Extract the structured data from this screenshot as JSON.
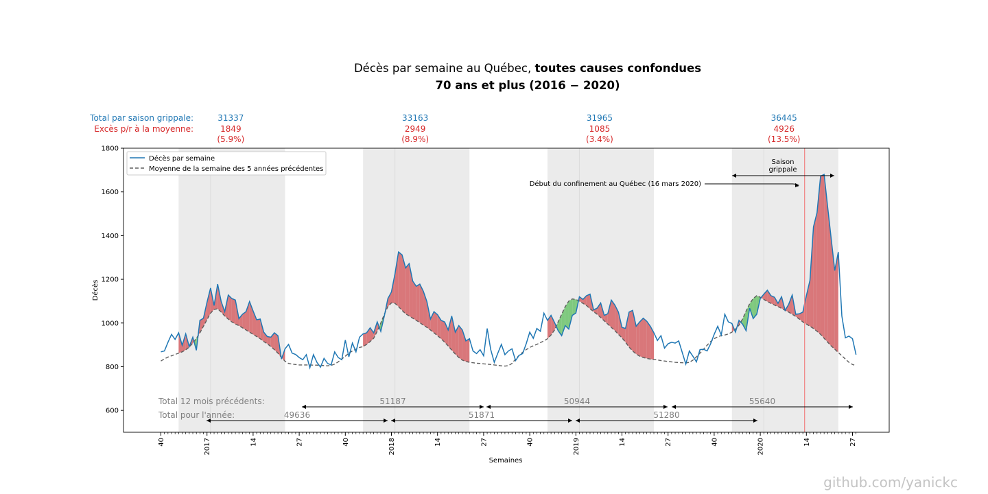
{
  "chart_data": {
    "type": "line",
    "title_regular": "Décès par semaine au Québec, ",
    "title_bold": "toutes causes confondues",
    "subtitle": "70 ans et plus (2016 − 2020)",
    "xlabel": "Semaines",
    "ylabel": "Décès",
    "ylim": [
      500,
      1800
    ],
    "y_ticks": [
      600,
      800,
      1000,
      1200,
      1400,
      1600,
      1800
    ],
    "x_tick_labels": [
      "40",
      "2017",
      "14",
      "27",
      "40",
      "2018",
      "14",
      "27",
      "40",
      "2019",
      "14",
      "27",
      "40",
      "2020",
      "14",
      "27"
    ],
    "legend": {
      "position": "top-left",
      "entries": [
        "Décès par semaine",
        "Moyenne de la semaine des 5 années précédentes"
      ]
    },
    "colors": {
      "deaths": "#1f77b4",
      "average": "#5f5f5f",
      "excess_fill": "#d9777a",
      "deficit_fill": "#7fc97f",
      "flu_season_band": "#ebebeb",
      "confinement_line": "#f08080",
      "total_text": "#1f77b4",
      "excess_text": "#d62728",
      "twelve_month_text": "#808080"
    },
    "season_header": {
      "total_label": "Total par saison grippale:",
      "excess_label": "Excès p/r à la moyenne:",
      "seasons": [
        {
          "total": "31337",
          "excess": "1849",
          "pct": "(5.9%)"
        },
        {
          "total": "33163",
          "excess": "2949",
          "pct": "(8.9%)"
        },
        {
          "total": "31965",
          "excess": "1085",
          "pct": "(3.4%)"
        },
        {
          "total": "36445",
          "excess": "4926",
          "pct": "(13.5%)"
        }
      ]
    },
    "annotations": {
      "flu_season": "Saison\ngrippale",
      "confinement": "Début du confinement au Québec (16 mars 2020)"
    },
    "totals_12_months": {
      "label": "Total 12 mois précédents:",
      "values": [
        "51187",
        "50944",
        "55640"
      ]
    },
    "totals_year": {
      "label": "Total pour l'année:",
      "values": [
        "49636",
        "51871",
        "51280"
      ]
    },
    "series": [
      {
        "name": "Décès par semaine",
        "values": [
          868,
          872,
          912,
          948,
          925,
          955,
          898,
          950,
          892,
          935,
          875,
          1012,
          1022,
          1095,
          1160,
          1080,
          1178,
          1098,
          1052,
          1128,
          1112,
          1105,
          1020,
          1040,
          1052,
          1098,
          1055,
          1015,
          1018,
          958,
          938,
          935,
          955,
          942,
          835,
          882,
          902,
          862,
          856,
          842,
          832,
          855,
          795,
          855,
          820,
          798,
          838,
          815,
          808,
          868,
          842,
          832,
          922,
          845,
          908,
          868,
          935,
          950,
          955,
          978,
          955,
          1005,
          962,
          1032,
          1112,
          1142,
          1225,
          1325,
          1312,
          1252,
          1272,
          1192,
          1168,
          1178,
          1145,
          1098,
          1018,
          1052,
          1038,
          1012,
          1005,
          968,
          1032,
          958,
          988,
          968,
          918,
          928,
          872,
          860,
          878,
          850,
          975,
          878,
          820,
          862,
          902,
          855,
          872,
          882,
          828,
          852,
          860,
          905,
          958,
          930,
          975,
          962,
          1045,
          1012,
          1035,
          1002,
          965,
          942,
          988,
          972,
          1035,
          1045,
          1120,
          1108,
          1125,
          1132,
          1060,
          1068,
          1092,
          1035,
          1042,
          1105,
          1082,
          1050,
          980,
          975,
          1050,
          1058,
          985,
          1005,
          1022,
          1008,
          985,
          955,
          920,
          942,
          885,
          905,
          912,
          908,
          918,
          865,
          812,
          872,
          848,
          822,
          878,
          880,
          872,
          905,
          948,
          985,
          945,
          1040,
          1005,
          998,
          958,
          1012,
          995,
          965,
          1068,
          1020,
          1040,
          1112,
          1132,
          1150,
          1125,
          1118,
          1090,
          1120,
          1058,
          1085,
          1128,
          1040,
          1042,
          1050,
          1125,
          1195,
          1440,
          1505,
          1672,
          1680,
          1530,
          1385,
          1240,
          1325,
          1032,
          932,
          940,
          928,
          855
        ]
      },
      {
        "name": "Moyenne de la semaine des 5 années précédentes",
        "values": [
          826,
          836,
          844,
          850,
          856,
          862,
          868,
          877,
          890,
          908,
          930,
          955,
          985,
          1015,
          1045,
          1062,
          1065,
          1050,
          1032,
          1018,
          1005,
          995,
          988,
          978,
          968,
          958,
          948,
          938,
          928,
          915,
          905,
          892,
          878,
          862,
          842,
          825,
          815,
          812,
          810,
          808,
          808,
          808,
          808,
          807,
          807,
          806,
          805,
          804,
          806,
          812,
          822,
          835,
          848,
          862,
          872,
          880,
          888,
          892,
          902,
          915,
          930,
          962,
          1000,
          1040,
          1075,
          1092,
          1090,
          1075,
          1058,
          1042,
          1032,
          1022,
          1012,
          1002,
          990,
          980,
          968,
          955,
          942,
          928,
          912,
          895,
          876,
          858,
          842,
          830,
          824,
          820,
          818,
          816,
          815,
          813,
          812,
          810,
          808,
          806,
          804,
          803,
          805,
          815,
          835,
          852,
          866,
          878,
          888,
          896,
          902,
          910,
          918,
          928,
          945,
          968,
          1005,
          1040,
          1075,
          1100,
          1110,
          1108,
          1100,
          1090,
          1080,
          1065,
          1052,
          1040,
          1025,
          1010,
          995,
          980,
          965,
          948,
          932,
          912,
          890,
          872,
          858,
          848,
          842,
          838,
          835,
          833,
          831,
          828,
          826,
          824,
          822,
          820,
          819,
          818,
          817,
          820,
          830,
          845,
          862,
          880,
          898,
          915,
          928,
          937,
          942,
          945,
          950,
          958,
          972,
          990,
          1018,
          1055,
          1088,
          1112,
          1125,
          1118,
          1108,
          1098,
          1090,
          1082,
          1075,
          1067,
          1058,
          1050,
          1040,
          1030,
          1018,
          1005,
          995,
          985,
          975,
          962,
          948,
          930,
          912,
          895,
          880,
          865,
          850,
          835,
          820,
          810,
          805
        ]
      }
    ]
  },
  "watermark": "github.com/yanickc"
}
